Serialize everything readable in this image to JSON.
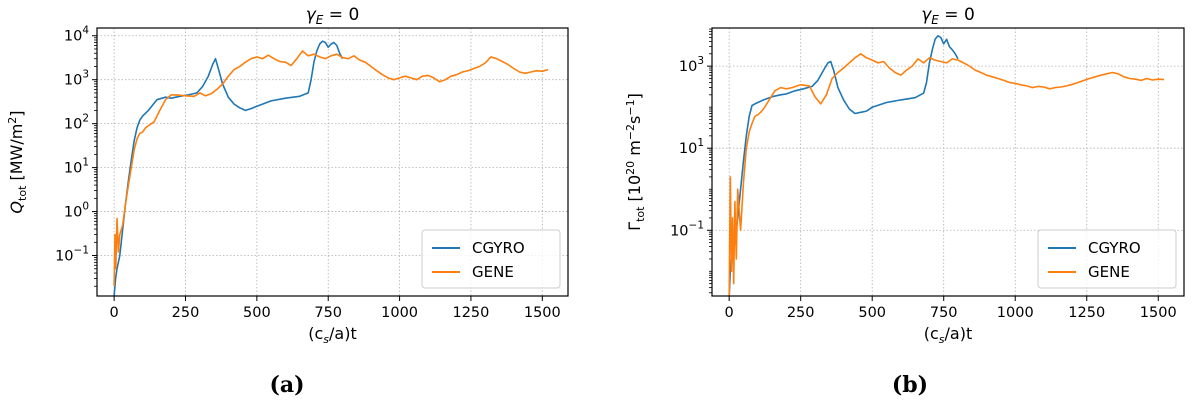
{
  "figure": {
    "panel_a_caption": "(a)",
    "panel_b_caption": "(b)"
  },
  "chart_data": [
    {
      "type": "line",
      "title": "γE = 0",
      "title_parts": {
        "symbol": "γ",
        "subscript": "E",
        "rest": " = 0"
      },
      "xlabel": "(cs/a)t",
      "xlabel_parts": {
        "open": "(c",
        "sub": "s",
        "close": "/a)t"
      },
      "ylabel": "Qtot [MW/m2]",
      "ylabel_parts": {
        "symbol": "Q",
        "sub": "tot",
        "unit_open": " [MW/m",
        "sup": "2",
        "unit_close": "]"
      },
      "xlim": [
        -60,
        1590
      ],
      "ylim": [
        0.012,
        15000
      ],
      "yscale": "log",
      "xticks": [
        0,
        250,
        500,
        750,
        1000,
        1250,
        1500
      ],
      "xtick_labels": [
        "0",
        "250",
        "500",
        "750",
        "1000",
        "1250",
        "1500"
      ],
      "yticks": [
        0.1,
        1,
        10,
        100,
        1000,
        10000
      ],
      "ytick_labels": [
        {
          "base": "10",
          "exp": "−1"
        },
        {
          "base": "10",
          "exp": "0"
        },
        {
          "base": "10",
          "exp": "1"
        },
        {
          "base": "10",
          "exp": "2"
        },
        {
          "base": "10",
          "exp": "3"
        },
        {
          "base": "10",
          "exp": "4"
        }
      ],
      "grid": true,
      "legend_position": "lower-right",
      "series": [
        {
          "name": "CGYRO",
          "color": "#1f77b4",
          "x": [
            0,
            5,
            10,
            20,
            30,
            40,
            50,
            60,
            70,
            80,
            90,
            100,
            120,
            150,
            180,
            200,
            230,
            260,
            290,
            310,
            330,
            345,
            355,
            365,
            380,
            400,
            420,
            440,
            460,
            480,
            500,
            550,
            600,
            650,
            680,
            690,
            700,
            710,
            720,
            730,
            740,
            750,
            760,
            770,
            780,
            790,
            800
          ],
          "y": [
            0.012,
            0.03,
            0.05,
            0.1,
            0.4,
            1.5,
            5,
            15,
            40,
            80,
            120,
            150,
            200,
            350,
            400,
            380,
            420,
            450,
            500,
            700,
            1200,
            2200,
            3000,
            1800,
            800,
            400,
            280,
            230,
            200,
            220,
            250,
            330,
            380,
            420,
            500,
            1000,
            2500,
            4500,
            6500,
            7500,
            7000,
            5500,
            6500,
            7000,
            6000,
            4000,
            3000
          ]
        },
        {
          "name": "GENE",
          "color": "#ff7f0e",
          "x": [
            0,
            3,
            6,
            10,
            15,
            20,
            30,
            40,
            50,
            60,
            70,
            80,
            90,
            100,
            110,
            120,
            140,
            160,
            180,
            200,
            220,
            250,
            280,
            300,
            320,
            340,
            360,
            380,
            400,
            420,
            440,
            460,
            480,
            500,
            520,
            540,
            560,
            580,
            600,
            620,
            640,
            660,
            680,
            700,
            720,
            740,
            760,
            780,
            800,
            820,
            840,
            860,
            880,
            900,
            920,
            940,
            960,
            980,
            1000,
            1020,
            1040,
            1060,
            1080,
            1100,
            1120,
            1140,
            1160,
            1180,
            1200,
            1220,
            1240,
            1260,
            1280,
            1300,
            1320,
            1340,
            1360,
            1380,
            1400,
            1420,
            1440,
            1460,
            1480,
            1500,
            1520
          ],
          "y": [
            0.02,
            0.3,
            0.05,
            0.7,
            0.12,
            0.3,
            0.5,
            1.5,
            4,
            10,
            25,
            45,
            60,
            65,
            80,
            90,
            110,
            200,
            350,
            450,
            450,
            430,
            420,
            500,
            430,
            480,
            600,
            800,
            1200,
            1700,
            2000,
            2500,
            3000,
            3300,
            3000,
            3600,
            3000,
            2600,
            2500,
            2100,
            3000,
            4500,
            3500,
            3800,
            3300,
            3000,
            3500,
            3800,
            3200,
            3000,
            3500,
            2800,
            2500,
            2000,
            1600,
            1300,
            1100,
            1000,
            1100,
            1200,
            1100,
            1000,
            1200,
            1250,
            1100,
            900,
            1000,
            1200,
            1300,
            1500,
            1600,
            1800,
            2000,
            2400,
            3300,
            3000,
            2600,
            2200,
            1800,
            1500,
            1400,
            1500,
            1600,
            1550,
            1700
          ]
        }
      ]
    },
    {
      "type": "line",
      "title": "γE = 0",
      "title_parts": {
        "symbol": "γ",
        "subscript": "E",
        "rest": " = 0"
      },
      "xlabel": "(cs/a)t",
      "xlabel_parts": {
        "open": "(c",
        "sub": "s",
        "close": "/a)t"
      },
      "ylabel": "Γtot [1020 m−2s−1]",
      "ylabel_parts": {
        "symbol": "Γ",
        "sub": "tot",
        "unit_open": " [10",
        "sup1": "20",
        "unit_mid1": " m",
        "sup2": "−2",
        "unit_mid2": "s",
        "sup3": "−1",
        "unit_close": "]"
      },
      "xlim": [
        -60,
        1590
      ],
      "ylim": [
        0.0025,
        8500
      ],
      "yscale": "log",
      "xticks": [
        0,
        250,
        500,
        750,
        1000,
        1250,
        1500
      ],
      "xtick_labels": [
        "0",
        "250",
        "500",
        "750",
        "1000",
        "1250",
        "1500"
      ],
      "yticks": [
        0.1,
        10,
        1000
      ],
      "ytick_labels": [
        {
          "base": "10",
          "exp": "−1"
        },
        {
          "base": "10",
          "exp": "1"
        },
        {
          "base": "10",
          "exp": "3"
        }
      ],
      "minor_yticks": [
        0.01,
        1,
        100
      ],
      "grid": true,
      "legend_position": "lower-right",
      "series": [
        {
          "name": "CGYRO",
          "color": "#1f77b4",
          "x": [
            0,
            5,
            10,
            20,
            30,
            40,
            50,
            60,
            70,
            80,
            90,
            100,
            120,
            150,
            180,
            200,
            230,
            260,
            290,
            310,
            330,
            345,
            355,
            365,
            380,
            400,
            420,
            440,
            460,
            480,
            500,
            550,
            600,
            650,
            680,
            690,
            700,
            710,
            720,
            730,
            740,
            750,
            760,
            770,
            780,
            790,
            800
          ],
          "y": [
            0.0025,
            0.015,
            0.03,
            0.05,
            0.2,
            1,
            5,
            20,
            60,
            110,
            120,
            130,
            150,
            180,
            200,
            210,
            250,
            280,
            320,
            450,
            800,
            1200,
            1300,
            800,
            300,
            150,
            90,
            70,
            75,
            80,
            100,
            130,
            150,
            170,
            220,
            400,
            1200,
            2500,
            4500,
            5500,
            5000,
            3500,
            4500,
            3000,
            2500,
            2000,
            1500
          ]
        },
        {
          "name": "GENE",
          "color": "#ff7f0e",
          "x": [
            0,
            4,
            8,
            12,
            16,
            20,
            25,
            30,
            40,
            50,
            60,
            70,
            80,
            90,
            100,
            110,
            120,
            140,
            160,
            180,
            200,
            220,
            250,
            280,
            300,
            320,
            340,
            360,
            380,
            400,
            420,
            440,
            460,
            480,
            500,
            520,
            540,
            560,
            580,
            600,
            620,
            640,
            660,
            680,
            700,
            720,
            740,
            760,
            780,
            800,
            820,
            840,
            860,
            880,
            900,
            920,
            940,
            960,
            980,
            1000,
            1020,
            1040,
            1060,
            1080,
            1100,
            1120,
            1140,
            1160,
            1180,
            1200,
            1220,
            1240,
            1260,
            1280,
            1300,
            1320,
            1340,
            1360,
            1380,
            1400,
            1420,
            1440,
            1460,
            1480,
            1500,
            1520
          ],
          "y": [
            0.0025,
            2,
            0.01,
            0.2,
            0.005,
            0.5,
            0.02,
            1,
            0.1,
            1.5,
            10,
            25,
            40,
            60,
            65,
            75,
            90,
            150,
            250,
            300,
            280,
            300,
            350,
            330,
            180,
            120,
            200,
            500,
            700,
            900,
            1200,
            1600,
            2000,
            1600,
            1400,
            1200,
            1300,
            900,
            700,
            600,
            800,
            1000,
            1500,
            1200,
            1600,
            1400,
            1300,
            1200,
            1500,
            1400,
            1200,
            1000,
            800,
            700,
            600,
            550,
            500,
            450,
            400,
            380,
            350,
            330,
            300,
            320,
            310,
            280,
            300,
            310,
            330,
            360,
            400,
            450,
            500,
            550,
            600,
            650,
            700,
            650,
            550,
            500,
            480,
            450,
            500,
            460,
            480,
            470
          ]
        }
      ]
    }
  ]
}
